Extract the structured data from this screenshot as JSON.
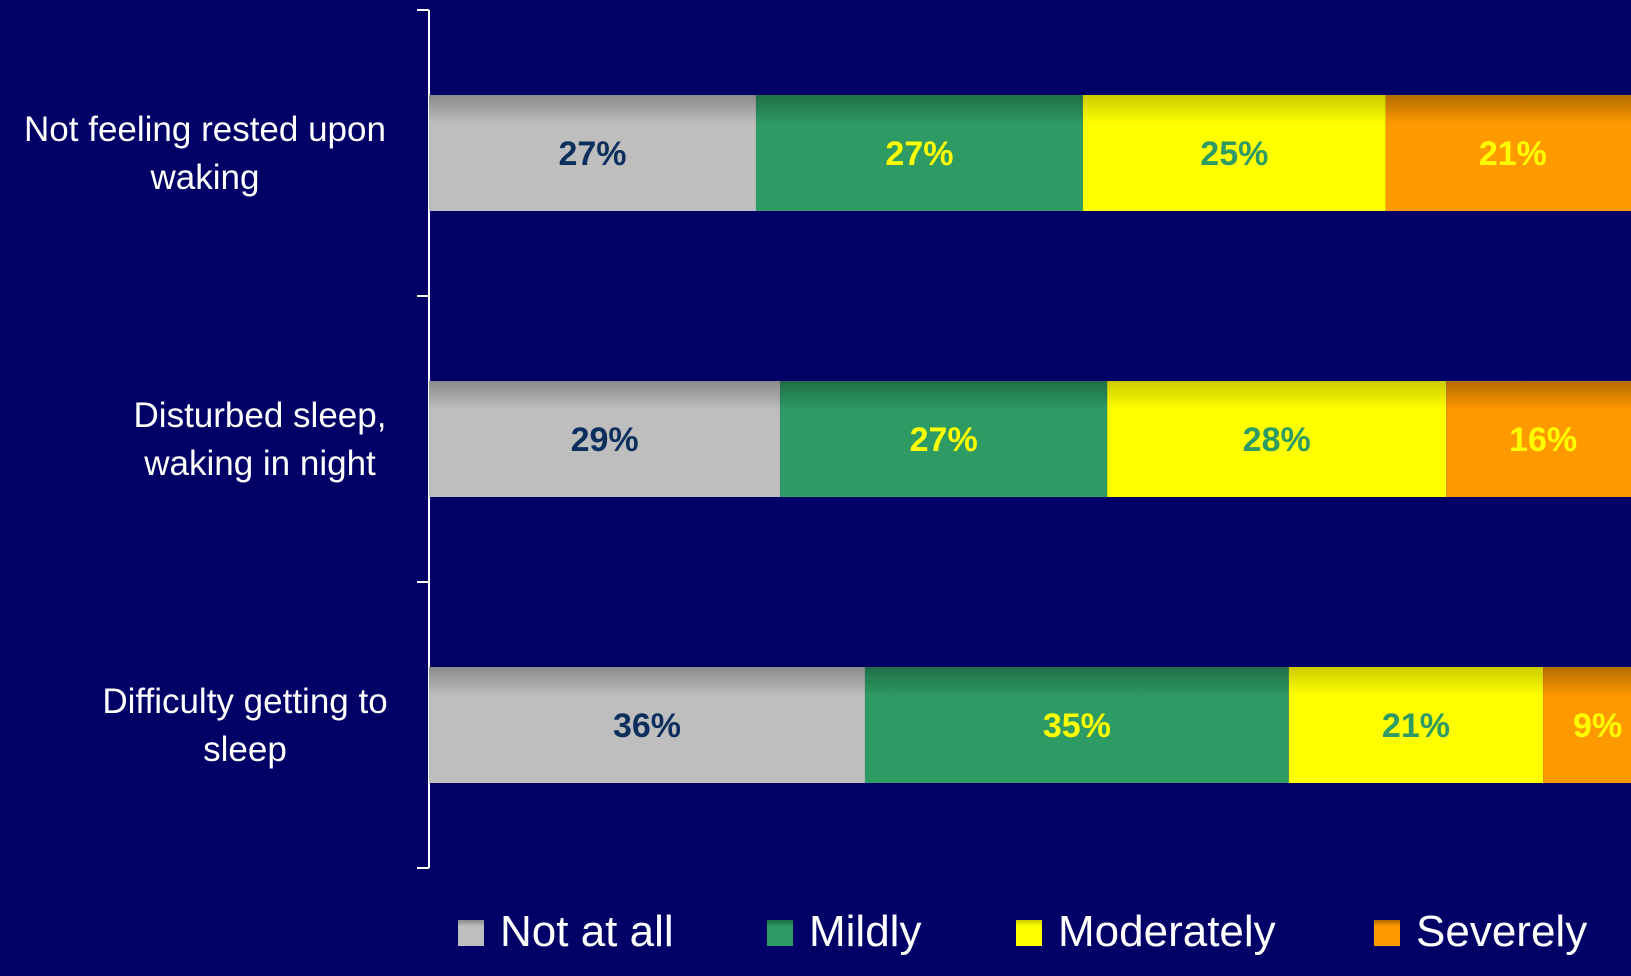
{
  "chart_data": {
    "type": "bar",
    "orientation": "horizontal",
    "stacked": true,
    "percent_stacked": true,
    "categories": [
      [
        "Not feeling rested upon",
        "waking"
      ],
      [
        "Disturbed sleep,",
        "waking in night"
      ],
      [
        "Difficulty getting to",
        "sleep"
      ]
    ],
    "series": [
      {
        "name": "Not at all",
        "values": [
          27,
          29,
          36
        ],
        "labels": [
          "27%",
          "29%",
          "36%"
        ],
        "color": "#BEBEBE",
        "label_color": "#0D2F5E"
      },
      {
        "name": "Mildly",
        "values": [
          27,
          27,
          35
        ],
        "labels": [
          "27%",
          "27%",
          "35%"
        ],
        "color": "#2E9A64",
        "label_color": "#FFFF00"
      },
      {
        "name": "Moderately",
        "values": [
          25,
          28,
          21
        ],
        "labels": [
          "25%",
          "28%",
          "21%"
        ],
        "color": "#FFFF00",
        "label_color": "#2E9A64"
      },
      {
        "name": "Severely",
        "values": [
          21,
          16,
          9
        ],
        "labels": [
          "21%",
          "16%",
          "9%"
        ],
        "color": "#FF9900",
        "label_color": "#FFFF00"
      }
    ],
    "xlim": [
      0,
      100
    ],
    "legend_position": "bottom",
    "background_color": "#000066",
    "category_label_color": "#FFFFFF"
  }
}
